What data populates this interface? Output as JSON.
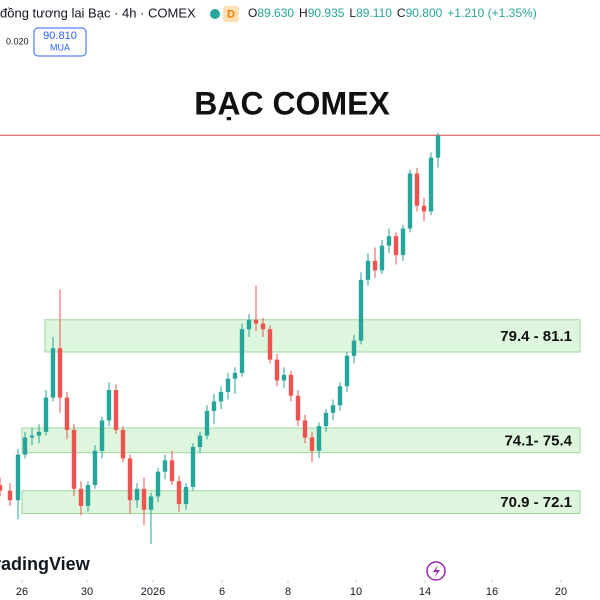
{
  "header": {
    "name": "đồng tương lai Bạc · 4h · COMEX",
    "badge": "D",
    "ohlc": [
      {
        "key": "O",
        "value": "89.630"
      },
      {
        "key": "H",
        "value": "90.935"
      },
      {
        "key": "L",
        "value": "89.110"
      },
      {
        "key": "C",
        "value": "90.800"
      }
    ],
    "change": "+1.210 (+1.35%)",
    "spread": "0.020",
    "price": "90.810",
    "side": "MUA",
    "brand": "TradingView"
  },
  "chart_data": {
    "type": "candlestick",
    "title": "BẠC COMEX",
    "up_color": "#26a69a",
    "down_color": "#ef5350",
    "x": [
      0,
      2,
      3.6,
      5,
      6.4,
      7.8,
      9.2,
      10.6,
      12,
      13.4,
      14.8,
      16.2,
      17.6,
      19,
      20.4,
      21.8,
      23.2,
      24.6,
      26,
      27.4,
      28.8,
      30.2,
      31.6,
      33,
      34.4,
      35.8,
      37.2,
      38.6,
      40,
      41.4,
      42.8,
      44.2,
      45.6,
      47,
      48.4,
      49.8,
      51.2,
      52.6,
      54,
      55.4,
      56.8,
      58.2,
      59.6,
      61,
      62.4,
      63.8,
      65.2,
      66.6,
      68,
      69.4,
      70.8,
      72.2,
      73.6,
      75,
      76.4,
      77.8,
      79.2,
      80.6,
      82,
      83.4,
      84.8,
      86.2,
      87.6
    ],
    "open": [
      72.4,
      72.1,
      71.6,
      74.0,
      74.9,
      75.0,
      75.2,
      77.0,
      79.6,
      77.0,
      75.3,
      72.2,
      71.3,
      72.4,
      74.2,
      75.8,
      77.4,
      75.3,
      73.8,
      71.6,
      72.2,
      71.1,
      71.8,
      73.1,
      73.7,
      72.6,
      71.4,
      72.3,
      74.4,
      75.0,
      76.3,
      76.8,
      77.3,
      78.0,
      78.3,
      80.6,
      81.1,
      80.9,
      80.6,
      79.0,
      77.9,
      78.2,
      77.1,
      75.8,
      74.9,
      74.2,
      75.5,
      76.2,
      76.6,
      77.6,
      79.2,
      80.0,
      83.2,
      84.2,
      83.7,
      85.0,
      85.5,
      84.5,
      85.9,
      88.8,
      87.1,
      86.8,
      89.63
    ],
    "high": [
      72.8,
      72.5,
      74.3,
      75.2,
      75.4,
      75.6,
      77.4,
      80.2,
      82.7,
      77.3,
      75.6,
      72.6,
      72.6,
      74.5,
      76.0,
      77.8,
      77.7,
      75.5,
      74.0,
      72.5,
      72.8,
      72.0,
      73.3,
      74.0,
      74.2,
      72.9,
      72.5,
      74.6,
      75.2,
      76.6,
      77.2,
      77.6,
      78.3,
      78.6,
      80.9,
      81.4,
      82.9,
      81.2,
      80.8,
      79.3,
      78.6,
      78.4,
      77.4,
      76.1,
      75.2,
      75.7,
      76.4,
      76.9,
      77.8,
      79.4,
      80.3,
      83.6,
      84.6,
      84.9,
      85.3,
      85.9,
      85.7,
      86.1,
      89.0,
      89.1,
      87.5,
      89.9,
      90.935
    ],
    "low": [
      71.8,
      71.3,
      70.6,
      73.8,
      74.5,
      74.6,
      75.0,
      76.8,
      76.2,
      74.8,
      71.8,
      70.8,
      71.0,
      72.2,
      73.8,
      75.5,
      75.1,
      73.6,
      70.9,
      71.2,
      70.3,
      69.3,
      71.5,
      72.7,
      72.4,
      71.0,
      71.1,
      72.1,
      74.1,
      74.8,
      75.6,
      76.4,
      76.9,
      77.2,
      78.1,
      80.2,
      80.5,
      80.2,
      78.8,
      77.6,
      77.5,
      76.8,
      75.5,
      74.6,
      73.6,
      73.8,
      75.2,
      75.8,
      76.3,
      77.3,
      78.8,
      79.8,
      82.9,
      83.3,
      83.5,
      84.6,
      84.0,
      84.2,
      85.7,
      86.8,
      86.3,
      86.6,
      89.11
    ],
    "close": [
      72.1,
      71.6,
      74.0,
      74.9,
      75.0,
      75.2,
      77.0,
      79.6,
      77.0,
      75.3,
      72.2,
      71.3,
      72.4,
      74.2,
      75.8,
      77.4,
      75.3,
      73.8,
      71.6,
      72.2,
      71.1,
      71.8,
      73.1,
      73.7,
      72.6,
      71.4,
      72.3,
      74.4,
      75.0,
      76.3,
      76.8,
      77.3,
      78.0,
      78.3,
      80.6,
      81.1,
      80.9,
      80.6,
      79.0,
      77.9,
      78.2,
      77.1,
      75.8,
      74.9,
      74.2,
      75.5,
      76.2,
      76.6,
      77.6,
      79.2,
      80.0,
      83.2,
      84.2,
      83.7,
      85.0,
      85.5,
      84.5,
      85.9,
      88.8,
      87.1,
      86.8,
      89.63,
      90.8
    ],
    "xlim": [
      0,
      120
    ],
    "ylim": [
      67.4,
      97.93
    ],
    "xticks": [
      {
        "value": 4.4,
        "label": "26"
      },
      {
        "value": 17.4,
        "label": "30"
      },
      {
        "value": 30.6,
        "label": "2026"
      },
      {
        "value": 44.4,
        "label": "6"
      },
      {
        "value": 57.6,
        "label": "8"
      },
      {
        "value": 71.2,
        "label": "10"
      },
      {
        "value": 85,
        "label": "14"
      },
      {
        "value": 98.4,
        "label": "16"
      },
      {
        "value": 112.2,
        "label": "20"
      }
    ],
    "price_line": 90.81,
    "price_line_color": "#e04848",
    "zones": [
      {
        "low": 79.4,
        "high": 81.1,
        "label": "79.4 - 81.1"
      },
      {
        "low": 74.1,
        "high": 75.4,
        "label": "74.1- 75.4"
      },
      {
        "low": 70.9,
        "high": 72.1,
        "label": "70.9 - 72.1"
      }
    ],
    "zone_color": "#c8eec8"
  }
}
